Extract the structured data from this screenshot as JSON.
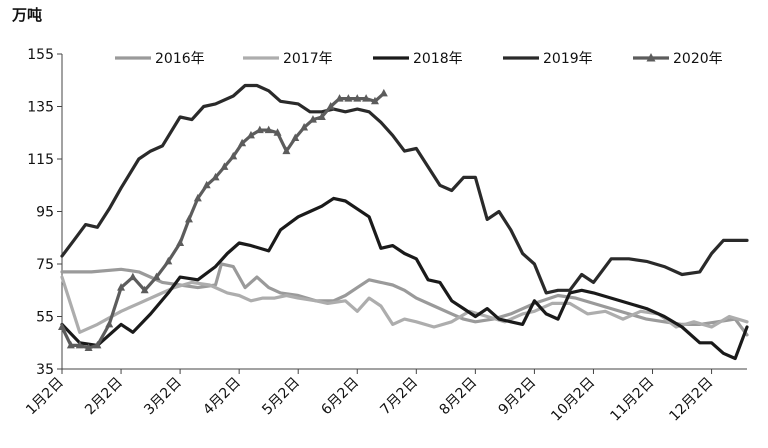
{
  "chart_data": {
    "type": "line",
    "unit_label": "万吨",
    "ylim": [
      35,
      155
    ],
    "yticks": [
      35,
      55,
      75,
      95,
      115,
      135,
      155
    ],
    "xlim": [
      1,
      12.6
    ],
    "xticks": [
      {
        "x": 1,
        "label": "1月2日"
      },
      {
        "x": 2,
        "label": "2月2日"
      },
      {
        "x": 3,
        "label": "3月2日"
      },
      {
        "x": 4,
        "label": "4月2日"
      },
      {
        "x": 5,
        "label": "5月2日"
      },
      {
        "x": 6,
        "label": "6月2日"
      },
      {
        "x": 7,
        "label": "7月2日"
      },
      {
        "x": 8,
        "label": "8月2日"
      },
      {
        "x": 9,
        "label": "9月2日"
      },
      {
        "x": 10,
        "label": "10月2日"
      },
      {
        "x": 11,
        "label": "11月2日"
      },
      {
        "x": 12,
        "label": "12月2日"
      }
    ],
    "legend_position": "top",
    "series": [
      {
        "name": "2016年",
        "color": "#9a9a9a",
        "x": [
          1,
          1.5,
          2,
          2.3,
          2.5,
          2.7,
          3,
          3.3,
          3.6,
          3.7,
          3.9,
          4.1,
          4.3,
          4.5,
          4.7,
          5,
          5.3,
          5.6,
          5.8,
          6,
          6.2,
          6.4,
          6.6,
          6.8,
          7,
          7.3,
          7.6,
          7.8,
          8,
          8.3,
          8.6,
          9,
          9.4,
          9.7,
          10,
          10.3,
          10.6,
          10.9,
          11.2,
          11.5,
          11.8,
          12.1,
          12.4,
          12.6
        ],
        "y": [
          72,
          72,
          73,
          72,
          70,
          68,
          67,
          66,
          67,
          75,
          74,
          66,
          70,
          66,
          64,
          63,
          61,
          61,
          63,
          66,
          69,
          68,
          67,
          65,
          62,
          59,
          56,
          54,
          53,
          54,
          56,
          60,
          63,
          62,
          60,
          58,
          56,
          54,
          53,
          52,
          52,
          53,
          54,
          48
        ]
      },
      {
        "name": "2017年",
        "color": "#adadad",
        "x": [
          1,
          1.3,
          1.6,
          2,
          2.3,
          2.6,
          2.9,
          3.2,
          3.5,
          3.8,
          4,
          4.2,
          4.4,
          4.6,
          4.8,
          5,
          5.3,
          5.5,
          5.8,
          6,
          6.2,
          6.4,
          6.6,
          6.8,
          7,
          7.3,
          7.6,
          7.9,
          8.2,
          8.5,
          8.8,
          9,
          9.3,
          9.6,
          9.9,
          10.2,
          10.5,
          10.8,
          11.1,
          11.4,
          11.7,
          12,
          12.3,
          12.6
        ],
        "y": [
          70,
          49,
          52,
          57,
          60,
          63,
          66,
          68,
          67,
          64,
          63,
          61,
          62,
          62,
          63,
          62,
          61,
          60,
          61,
          57,
          62,
          59,
          52,
          54,
          53,
          51,
          53,
          57,
          55,
          53,
          56,
          57,
          60,
          60,
          56,
          57,
          54,
          57,
          56,
          51,
          53,
          51,
          55,
          53
        ]
      },
      {
        "name": "2018年",
        "color": "#1a1a1a",
        "x": [
          1,
          1.3,
          1.6,
          2,
          2.2,
          2.5,
          2.8,
          3,
          3.3,
          3.6,
          3.8,
          4,
          4.2,
          4.5,
          4.7,
          5,
          5.2,
          5.4,
          5.6,
          5.8,
          6,
          6.2,
          6.4,
          6.6,
          6.8,
          7,
          7.2,
          7.4,
          7.6,
          7.8,
          8,
          8.2,
          8.4,
          8.6,
          8.8,
          9,
          9.2,
          9.4,
          9.6,
          9.8,
          10,
          10.3,
          10.6,
          10.9,
          11.2,
          11.5,
          11.8,
          12,
          12.2,
          12.4,
          12.6
        ],
        "y": [
          52,
          45,
          44,
          52,
          49,
          56,
          64,
          70,
          69,
          74,
          79,
          83,
          82,
          80,
          88,
          93,
          95,
          97,
          100,
          99,
          96,
          93,
          81,
          82,
          79,
          77,
          69,
          68,
          61,
          58,
          55,
          58,
          54,
          53,
          52,
          61,
          56,
          54,
          64,
          65,
          64,
          62,
          60,
          58,
          55,
          51,
          45,
          45,
          41,
          39,
          51
        ]
      },
      {
        "name": "2019年",
        "color": "#2a2a2a",
        "x": [
          1,
          1.2,
          1.4,
          1.6,
          1.8,
          2,
          2.3,
          2.5,
          2.7,
          3,
          3.2,
          3.4,
          3.6,
          3.9,
          4.1,
          4.3,
          4.5,
          4.7,
          5,
          5.2,
          5.4,
          5.6,
          5.8,
          6,
          6.2,
          6.4,
          6.6,
          6.8,
          7,
          7.2,
          7.4,
          7.6,
          7.8,
          8,
          8.2,
          8.4,
          8.6,
          8.8,
          9,
          9.2,
          9.4,
          9.6,
          9.8,
          10,
          10.3,
          10.6,
          10.9,
          11.2,
          11.5,
          11.8,
          12,
          12.2,
          12.4,
          12.6
        ],
        "y": [
          78,
          84,
          90,
          89,
          96,
          104,
          115,
          118,
          120,
          131,
          130,
          135,
          136,
          139,
          143,
          143,
          141,
          137,
          136,
          133,
          133,
          134,
          133,
          134,
          133,
          129,
          124,
          118,
          119,
          112,
          105,
          103,
          108,
          108,
          92,
          95,
          88,
          79,
          75,
          64,
          65,
          65,
          71,
          68,
          77,
          77,
          76,
          74,
          71,
          72,
          79,
          84,
          84,
          84
        ]
      },
      {
        "name": "2020年",
        "color": "#5c5c5c",
        "marker": "triangle",
        "x": [
          1,
          1.15,
          1.3,
          1.45,
          1.6,
          1.8,
          2,
          2.2,
          2.4,
          2.6,
          2.8,
          3,
          3.15,
          3.3,
          3.45,
          3.6,
          3.75,
          3.9,
          4.05,
          4.2,
          4.35,
          4.5,
          4.65,
          4.8,
          4.95,
          5.1,
          5.25,
          5.4,
          5.55,
          5.7,
          5.85,
          6,
          6.15,
          6.3,
          6.45
        ],
        "y": [
          51,
          44,
          44,
          43,
          44,
          52,
          66,
          70,
          65,
          70,
          76,
          83,
          92,
          100,
          105,
          108,
          112,
          116,
          121,
          124,
          126,
          126,
          125,
          118,
          123,
          127,
          130,
          131,
          135,
          138,
          138,
          138,
          138,
          137,
          140
        ]
      }
    ]
  }
}
